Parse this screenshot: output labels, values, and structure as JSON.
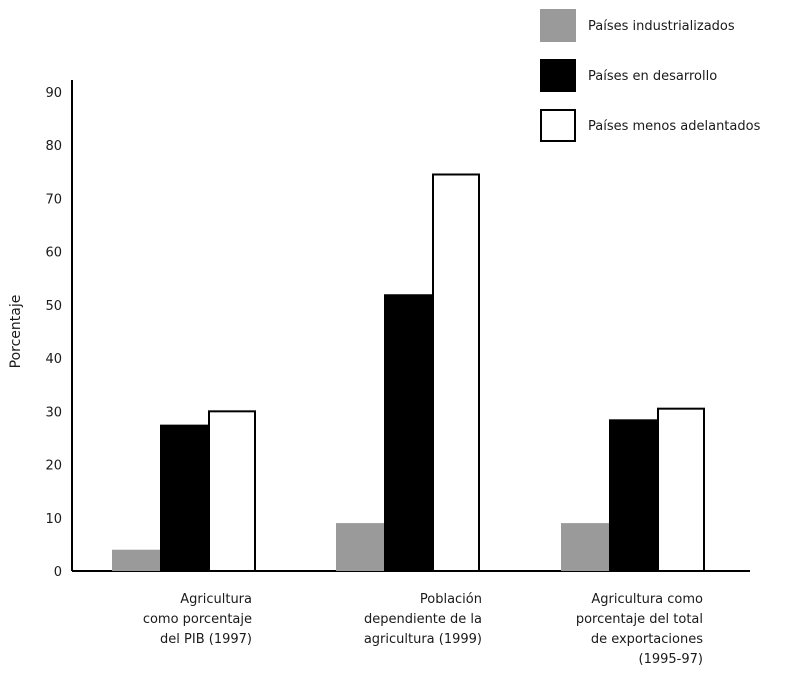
{
  "chart_data": {
    "type": "bar",
    "title": "",
    "xlabel": "",
    "ylabel": "Porcentaje",
    "ylim": [
      0,
      90
    ],
    "y_tick_labels": [
      "0",
      "10",
      "20",
      "30",
      "40",
      "50",
      "60",
      "70",
      "80",
      "90"
    ],
    "categories": [
      "Agricultura como porcentaje del PIB (1997)",
      "Población dependiente de la agricultura (1999)",
      "Agricultura como porcentaje del total de exportaciones (1995-97)"
    ],
    "category_lines": [
      [
        "Agricultura",
        "como porcentaje",
        "del PIB (1997)"
      ],
      [
        "Población",
        "dependiente de la",
        "agricultura (1999)"
      ],
      [
        "Agricultura como",
        "porcentaje del total",
        "de exportaciones",
        "(1995-97)"
      ]
    ],
    "series": [
      {
        "name": "Países industrializados",
        "color": "#9a9a9a",
        "values": [
          4,
          9,
          9
        ]
      },
      {
        "name": "Países en desarrollo",
        "color": "#000000",
        "values": [
          27.5,
          52,
          28.5
        ]
      },
      {
        "name": "Países menos adelantados",
        "color": "#ffffff",
        "values": [
          30,
          74.5,
          30.5
        ]
      }
    ],
    "legend_position": "top-right",
    "grid": false
  }
}
